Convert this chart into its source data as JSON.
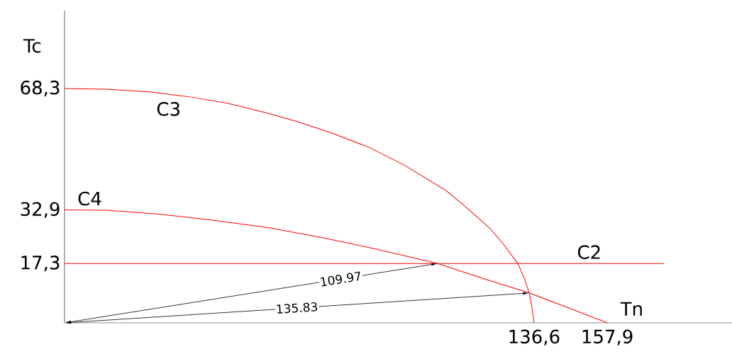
{
  "chart_data": {
    "type": "line",
    "xlabel": "Tn",
    "ylabel": "Tc",
    "xlim": [
      0,
      194.2
    ],
    "ylim": [
      0,
      91
    ],
    "xticks": [
      {
        "value": 136.6,
        "label": "136,6"
      },
      {
        "value": 157.9,
        "label": "157,9"
      }
    ],
    "yticks": [
      {
        "value": 17.3,
        "label": "17,3"
      },
      {
        "value": 32.9,
        "label": "32,9"
      },
      {
        "value": 68.3,
        "label": "68,3"
      }
    ],
    "grid": false,
    "marker": "none",
    "line_style": "solid",
    "series": [
      {
        "name": "C3",
        "color": "#ff0000",
        "x": [
          0,
          12.2,
          24.6,
          36.9,
          47.3,
          57.6,
          67.9,
          77.2,
          88.5,
          98.8,
          111.2,
          117.4,
          123.6,
          127.7,
          131.9,
          133.9,
          135.2,
          136.0,
          136.6
        ],
        "values": [
          68.3,
          68.1,
          67.3,
          65.8,
          64.0,
          61.5,
          58.6,
          55.5,
          51.2,
          46.0,
          38.4,
          33.2,
          27.7,
          22.9,
          17.3,
          12.6,
          8.7,
          4.3,
          0
        ]
      },
      {
        "name": "C4",
        "color": "#ff0000",
        "x": [
          0,
          12.2,
          26.6,
          43.1,
          59.6,
          76.1,
          90.6,
          108.6,
          121.5,
          135.2,
          146.3,
          157.9
        ],
        "values": [
          32.9,
          32.8,
          31.8,
          29.9,
          27.7,
          24.6,
          21.5,
          17.3,
          13.0,
          8.7,
          4.5,
          0
        ]
      },
      {
        "name": "C2",
        "color": "#ff0000",
        "x": [
          0,
          174.4
        ],
        "values": [
          17.3,
          17.3
        ]
      }
    ],
    "annotations": [
      "109.97",
      "135.83"
    ]
  }
}
